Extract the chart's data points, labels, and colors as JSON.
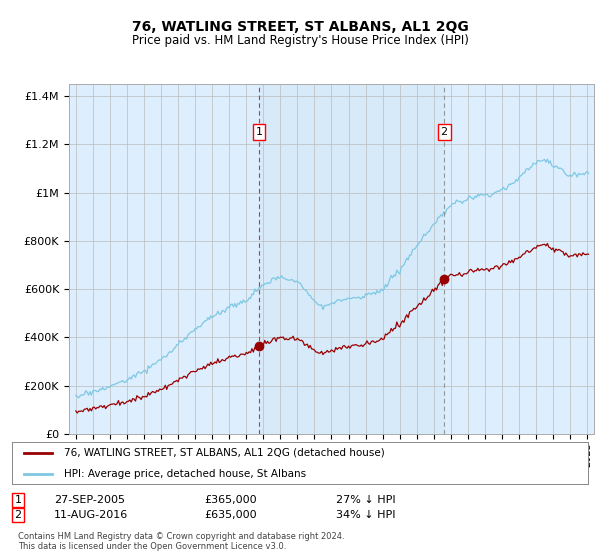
{
  "title": "76, WATLING STREET, ST ALBANS, AL1 2QG",
  "subtitle": "Price paid vs. HM Land Registry's House Price Index (HPI)",
  "hpi_color": "#7ec8e3",
  "hpi_fill_color": "#d6eaf8",
  "price_color": "#990000",
  "marker1_x": 2005.75,
  "marker2_x": 2016.61,
  "marker1_price": 365000,
  "marker2_price": 635000,
  "legend_label1": "76, WATLING STREET, ST ALBANS, AL1 2QG (detached house)",
  "legend_label2": "HPI: Average price, detached house, St Albans",
  "background_color": "#ddeeff",
  "plot_bg": "#ffffff",
  "grid_color": "#bbbbbb",
  "footnote": "Contains HM Land Registry data © Crown copyright and database right 2024.\nThis data is licensed under the Open Government Licence v3.0."
}
